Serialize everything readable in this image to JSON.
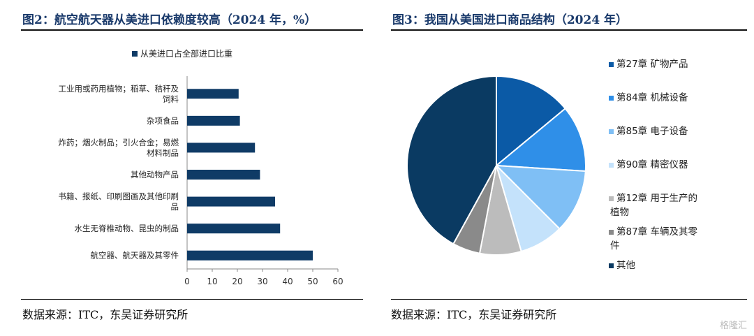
{
  "left_panel": {
    "title": "图2：航空航天器从美进口依赖度较高（2024 年，%）",
    "source": "数据来源：ITC，东吴证券研究所"
  },
  "right_panel": {
    "title": "图3：我国从美国进口商品结构（2024 年）",
    "source": "数据来源：ITC，东吴证券研究所"
  },
  "watermark": "格隆汇",
  "colors": {
    "bar": "#0f3b66",
    "axis": "#888888"
  },
  "chart_data": [
    {
      "type": "bar",
      "orientation": "horizontal",
      "title": "",
      "legend": {
        "entries": [
          "从美进口占全部进口比重"
        ],
        "placement": "top"
      },
      "categories": [
        [
          "工业用或药用植物；稻草、秸秆及",
          "饲料"
        ],
        [
          "杂项食品"
        ],
        [
          "炸药；烟火制品；引火合金；易燃",
          "材料制品"
        ],
        [
          "其他动物产品"
        ],
        [
          "书籍、报纸、印刷图画及其他印刷",
          "品"
        ],
        [
          "水生无脊椎动物、昆虫的制品"
        ],
        [
          "航空器、航天器及其零件"
        ]
      ],
      "series": [
        {
          "name": "从美进口占全部进口比重",
          "values": [
            20.5,
            21,
            27,
            29,
            35,
            37,
            50
          ]
        }
      ],
      "xlim": [
        0,
        60
      ],
      "xticks": [
        0,
        10,
        20,
        30,
        40,
        50,
        60
      ],
      "grid": false
    },
    {
      "type": "pie",
      "title": "",
      "legend_placement": "right",
      "slices": [
        {
          "label": [
            "第27章 矿物产品"
          ],
          "value": 14,
          "color": "#0b5aa6"
        },
        {
          "label": [
            "第84章 机械设备"
          ],
          "value": 12,
          "color": "#2f8fe8"
        },
        {
          "label": [
            "第85章 电子设备"
          ],
          "value": 11.5,
          "color": "#7fbff5"
        },
        {
          "label": [
            "第90章 精密仪器"
          ],
          "value": 8,
          "color": "#c4e2fb"
        },
        {
          "label": [
            "第12章 用于生产的",
            "植物"
          ],
          "value": 7.5,
          "color": "#bcbcbc"
        },
        {
          "label": [
            "第87章 车辆及其零",
            "件"
          ],
          "value": 5,
          "color": "#8a8a8a"
        },
        {
          "label": [
            "其他"
          ],
          "value": 42,
          "color": "#0a3a62"
        }
      ]
    }
  ]
}
